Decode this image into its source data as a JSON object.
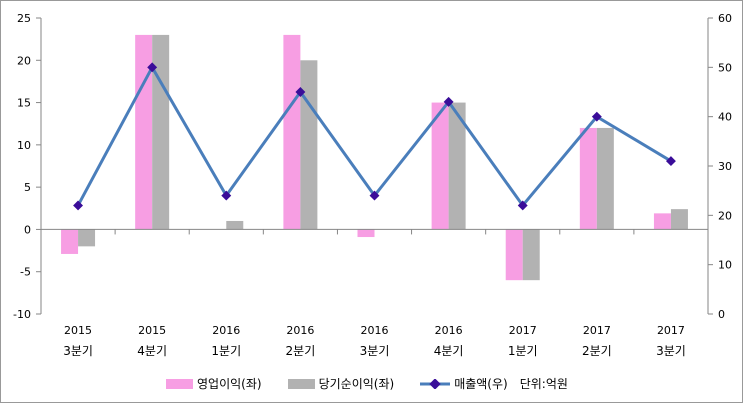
{
  "chart_data": {
    "type": "bar+line",
    "categories": [
      [
        "2015",
        "3분기"
      ],
      [
        "2015",
        "4분기"
      ],
      [
        "2016",
        "1분기"
      ],
      [
        "2016",
        "2분기"
      ],
      [
        "2016",
        "3분기"
      ],
      [
        "2016",
        "4분기"
      ],
      [
        "2017",
        "1분기"
      ],
      [
        "2017",
        "2분기"
      ],
      [
        "2017",
        "3분기"
      ]
    ],
    "series": [
      {
        "name": "영업이익(좌)",
        "type": "bar",
        "axis": "left",
        "color": "#f79ee3",
        "values": [
          -2.9,
          23,
          0,
          23,
          -0.9,
          15,
          -6,
          12,
          1.9
        ]
      },
      {
        "name": "당기순이익(좌)",
        "type": "bar",
        "axis": "left",
        "color": "#b2b2b2",
        "values": [
          -2.0,
          23,
          1,
          20,
          0,
          15,
          -6,
          12,
          2.4
        ]
      },
      {
        "name": "매출액(우)",
        "type": "line",
        "axis": "right",
        "color": "#4a7ebb",
        "marker_color": "#3a0d99",
        "values": [
          22,
          50,
          24,
          45,
          24,
          43,
          22,
          40,
          31
        ]
      }
    ],
    "left_axis": {
      "range": [
        -10,
        25
      ],
      "ticks": [
        -10,
        -5,
        0,
        5,
        10,
        15,
        20,
        25
      ]
    },
    "right_axis": {
      "range": [
        0,
        60
      ],
      "ticks": [
        0,
        10,
        20,
        30,
        40,
        50,
        60
      ]
    },
    "unit_note": "단위:억원",
    "legend_position": "bottom"
  }
}
